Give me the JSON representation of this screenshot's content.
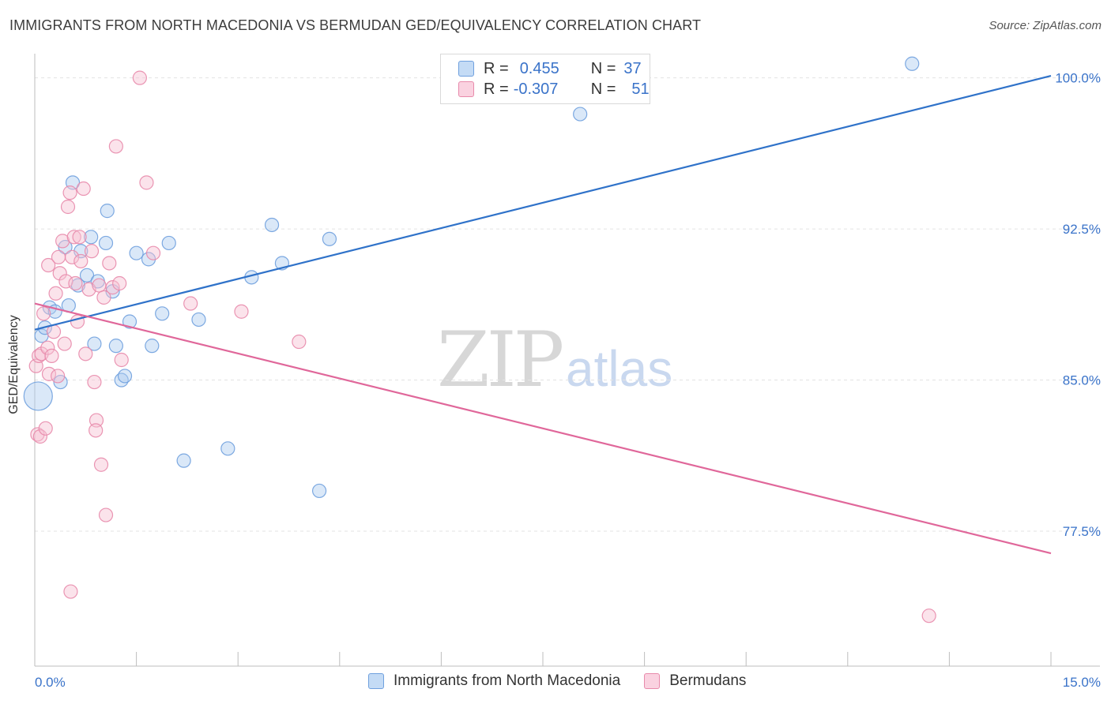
{
  "title": "IMMIGRANTS FROM NORTH MACEDONIA VS BERMUDAN GED/EQUIVALENCY CORRELATION CHART",
  "source": "Source: ZipAtlas.com",
  "watermark": {
    "zip": "ZIP",
    "atlas": "atlas"
  },
  "legend": {
    "row1": {
      "r_label": "R =",
      "r_value": "0.455",
      "n_label": "N =",
      "n_value": "37"
    },
    "row2": {
      "r_label": "R =",
      "r_value": "-0.307",
      "n_label": "N =",
      "n_value": "51"
    }
  },
  "colors": {
    "blue_fill": "#aecbef",
    "blue_stroke": "#6fa0de",
    "blue_line": "#2f72c9",
    "pink_fill": "#f6c0d3",
    "pink_stroke": "#e88aab",
    "pink_line": "#e0679a",
    "axis_text": "#3a73c9",
    "grid": "#e3e3e3"
  },
  "chart_data": {
    "type": "scatter",
    "title": "IMMIGRANTS FROM NORTH MACEDONIA VS BERMUDAN GED/EQUIVALENCY CORRELATION CHART",
    "xlabel": "",
    "ylabel": "GED/Equivalency",
    "xlim": [
      0,
      15
    ],
    "ylim": [
      70.8,
      101.2
    ],
    "x_tick_labels": [
      {
        "value": 0,
        "label": "0.0%"
      },
      {
        "value": 15,
        "label": "15.0%"
      }
    ],
    "y_ticks": [
      {
        "value": 100,
        "label": "100.0%"
      },
      {
        "value": 92.5,
        "label": "92.5%"
      },
      {
        "value": 85,
        "label": "85.0%"
      },
      {
        "value": 77.5,
        "label": "77.5%"
      }
    ],
    "series": [
      {
        "name": "Immigrants from North Macedonia",
        "color": "blue",
        "trend": {
          "x": [
            0,
            15
          ],
          "y": [
            87.5,
            100.1
          ]
        },
        "points": [
          {
            "x": 0.05,
            "y": 84.2,
            "big": true
          },
          {
            "x": 0.1,
            "y": 87.2
          },
          {
            "x": 0.15,
            "y": 87.6
          },
          {
            "x": 0.22,
            "y": 88.6
          },
          {
            "x": 0.3,
            "y": 88.4
          },
          {
            "x": 0.38,
            "y": 84.9
          },
          {
            "x": 0.45,
            "y": 91.6
          },
          {
            "x": 0.5,
            "y": 88.7
          },
          {
            "x": 0.56,
            "y": 94.8
          },
          {
            "x": 0.64,
            "y": 89.7
          },
          {
            "x": 0.68,
            "y": 91.4
          },
          {
            "x": 0.77,
            "y": 90.2
          },
          {
            "x": 0.83,
            "y": 92.1
          },
          {
            "x": 0.88,
            "y": 86.8
          },
          {
            "x": 0.93,
            "y": 89.9
          },
          {
            "x": 1.05,
            "y": 91.8
          },
          {
            "x": 1.07,
            "y": 93.4
          },
          {
            "x": 1.15,
            "y": 89.4
          },
          {
            "x": 1.2,
            "y": 86.7
          },
          {
            "x": 1.28,
            "y": 85.0
          },
          {
            "x": 1.33,
            "y": 85.2
          },
          {
            "x": 1.4,
            "y": 87.9
          },
          {
            "x": 1.5,
            "y": 91.3
          },
          {
            "x": 1.68,
            "y": 91.0
          },
          {
            "x": 1.73,
            "y": 86.7
          },
          {
            "x": 1.88,
            "y": 88.3
          },
          {
            "x": 1.98,
            "y": 91.8
          },
          {
            "x": 2.2,
            "y": 81.0
          },
          {
            "x": 2.42,
            "y": 88.0
          },
          {
            "x": 2.85,
            "y": 81.6
          },
          {
            "x": 3.2,
            "y": 90.1
          },
          {
            "x": 3.5,
            "y": 92.7
          },
          {
            "x": 3.65,
            "y": 90.8
          },
          {
            "x": 4.2,
            "y": 79.5
          },
          {
            "x": 4.35,
            "y": 92.0
          },
          {
            "x": 8.05,
            "y": 98.2
          },
          {
            "x": 12.95,
            "y": 100.7
          }
        ]
      },
      {
        "name": "Bermudans",
        "color": "pink",
        "trend": {
          "x": [
            0,
            15
          ],
          "y": [
            88.8,
            76.4
          ]
        },
        "points": [
          {
            "x": 0.02,
            "y": 85.7
          },
          {
            "x": 0.04,
            "y": 82.3
          },
          {
            "x": 0.06,
            "y": 86.2
          },
          {
            "x": 0.08,
            "y": 82.2
          },
          {
            "x": 0.1,
            "y": 86.3
          },
          {
            "x": 0.13,
            "y": 88.3
          },
          {
            "x": 0.16,
            "y": 82.6
          },
          {
            "x": 0.19,
            "y": 86.6
          },
          {
            "x": 0.21,
            "y": 85.3
          },
          {
            "x": 0.25,
            "y": 86.2
          },
          {
            "x": 0.28,
            "y": 87.4
          },
          {
            "x": 0.31,
            "y": 89.3
          },
          {
            "x": 0.34,
            "y": 85.2
          },
          {
            "x": 0.37,
            "y": 90.3
          },
          {
            "x": 0.41,
            "y": 91.9
          },
          {
            "x": 0.44,
            "y": 86.8
          },
          {
            "x": 0.46,
            "y": 89.9
          },
          {
            "x": 0.49,
            "y": 93.6
          },
          {
            "x": 0.52,
            "y": 94.3
          },
          {
            "x": 0.55,
            "y": 91.1
          },
          {
            "x": 0.58,
            "y": 92.1
          },
          {
            "x": 0.6,
            "y": 89.8
          },
          {
            "x": 0.63,
            "y": 87.9
          },
          {
            "x": 0.66,
            "y": 92.1
          },
          {
            "x": 0.68,
            "y": 90.9
          },
          {
            "x": 0.72,
            "y": 94.5
          },
          {
            "x": 0.75,
            "y": 86.3
          },
          {
            "x": 0.8,
            "y": 89.5
          },
          {
            "x": 0.84,
            "y": 91.4
          },
          {
            "x": 0.88,
            "y": 84.9
          },
          {
            "x": 0.91,
            "y": 83.0
          },
          {
            "x": 0.95,
            "y": 89.7
          },
          {
            "x": 0.98,
            "y": 80.8
          },
          {
            "x": 1.02,
            "y": 89.1
          },
          {
            "x": 1.05,
            "y": 78.3
          },
          {
            "x": 1.1,
            "y": 90.8
          },
          {
            "x": 1.15,
            "y": 89.6
          },
          {
            "x": 1.2,
            "y": 96.6
          },
          {
            "x": 1.25,
            "y": 89.8
          },
          {
            "x": 1.28,
            "y": 86.0
          },
          {
            "x": 1.55,
            "y": 100.0
          },
          {
            "x": 1.65,
            "y": 94.8
          },
          {
            "x": 1.75,
            "y": 91.3
          },
          {
            "x": 2.3,
            "y": 88.8
          },
          {
            "x": 3.05,
            "y": 88.4
          },
          {
            "x": 3.9,
            "y": 86.9
          },
          {
            "x": 0.53,
            "y": 74.5
          },
          {
            "x": 0.9,
            "y": 82.5
          },
          {
            "x": 0.35,
            "y": 91.1
          },
          {
            "x": 0.2,
            "y": 90.7
          },
          {
            "x": 13.2,
            "y": 73.3
          }
        ]
      }
    ]
  },
  "bottom_legend": {
    "item1": "Immigrants from North Macedonia",
    "item2": "Bermudans"
  }
}
